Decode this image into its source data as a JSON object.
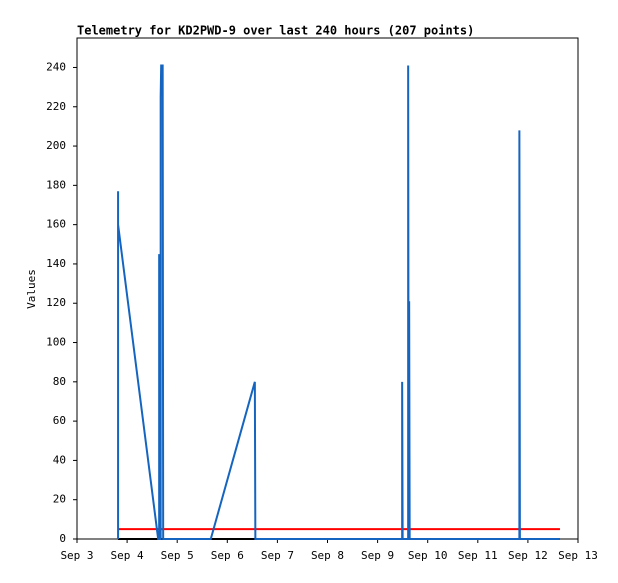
{
  "chart_data": {
    "type": "line",
    "title": "Telemetry for KD2PWD-9 over last 240 hours (207 points)",
    "y_label": "Values",
    "xlim": [
      3,
      13
    ],
    "xticks": [
      {
        "value": 3,
        "label": "Sep 3"
      },
      {
        "value": 4,
        "label": "Sep 4"
      },
      {
        "value": 5,
        "label": "Sep 5"
      },
      {
        "value": 6,
        "label": "Sep 6"
      },
      {
        "value": 7,
        "label": "Sep 7"
      },
      {
        "value": 8,
        "label": "Sep 8"
      },
      {
        "value": 9,
        "label": "Sep 9"
      },
      {
        "value": 10,
        "label": "Sep 10"
      },
      {
        "value": 11,
        "label": "Sep 11"
      },
      {
        "value": 12,
        "label": "Sep 12"
      },
      {
        "value": 13,
        "label": "Sep 13"
      }
    ],
    "ylim": [
      0,
      255
    ],
    "yticks": [
      0,
      20,
      40,
      60,
      80,
      100,
      120,
      140,
      160,
      180,
      200,
      220,
      240
    ],
    "series": [
      {
        "color": "#000000",
        "x": [
          3.82,
          12.64
        ],
        "values": [
          0,
          0
        ]
      },
      {
        "color": "#ff0000",
        "x": [
          3.82,
          12.64
        ],
        "values": [
          5,
          5
        ]
      },
      {
        "color": "#1565c0",
        "x": [
          3.82,
          3.82,
          3.82,
          4.62,
          4.64,
          4.64,
          4.65,
          4.67,
          4.67,
          4.68,
          4.71,
          4.72,
          5.67,
          6.55,
          6.56,
          9.49,
          9.49,
          9.5,
          9.61,
          9.61,
          9.62,
          9.63,
          9.63,
          9.64,
          11.83,
          11.83,
          11.84,
          12.64
        ],
        "values": [
          0,
          177,
          160,
          0,
          0,
          145,
          0,
          0,
          225,
          241,
          241,
          0,
          0,
          80,
          0,
          0,
          80,
          0,
          0,
          241,
          0,
          0,
          121,
          0,
          0,
          208,
          0,
          0
        ]
      }
    ]
  }
}
